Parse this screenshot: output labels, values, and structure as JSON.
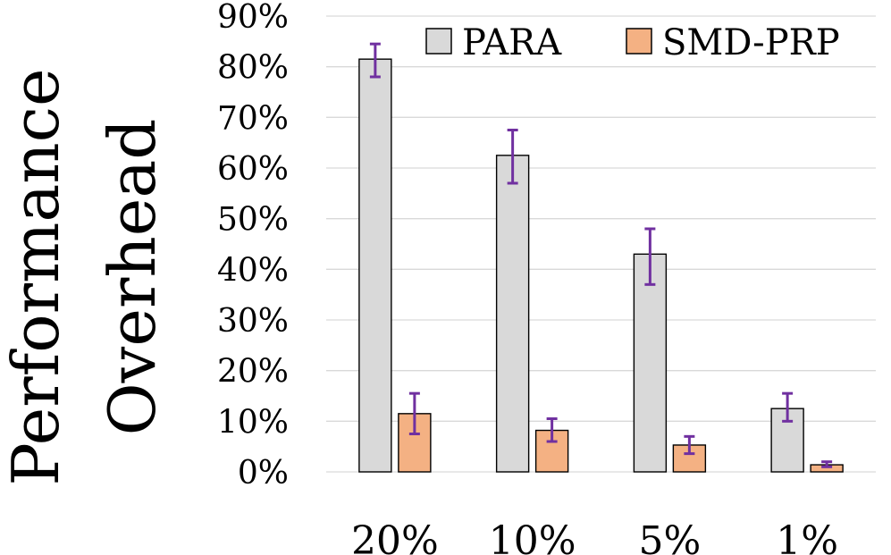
{
  "chart_data": {
    "type": "bar",
    "title": "",
    "xlabel": "",
    "ylabel_lines": [
      "Performance",
      "Overhead"
    ],
    "ylim": [
      0,
      90
    ],
    "yticks": [
      0,
      10,
      20,
      30,
      40,
      50,
      60,
      70,
      80,
      90
    ],
    "ytick_labels": [
      "0%",
      "10%",
      "20%",
      "30%",
      "40%",
      "50%",
      "60%",
      "70%",
      "80%",
      "90%"
    ],
    "categories": [
      "20%",
      "10%",
      "5%",
      "1%"
    ],
    "grid": true,
    "legend_position": "top-right",
    "series": [
      {
        "name": "PARA",
        "color": "#d9d9d9",
        "values": [
          81.5,
          62.5,
          43,
          12.5
        ],
        "error_low": [
          78,
          57,
          37,
          10
        ],
        "error_high": [
          84.5,
          67.5,
          48,
          15.5
        ]
      },
      {
        "name": "SMD-PRP",
        "color": "#f4b183",
        "values": [
          11.5,
          8.2,
          5.3,
          1.4
        ],
        "error_low": [
          7.5,
          6,
          3.6,
          1
        ],
        "error_high": [
          15.5,
          10.5,
          7,
          2
        ]
      }
    ],
    "error_bar_color": "#7030a0"
  }
}
